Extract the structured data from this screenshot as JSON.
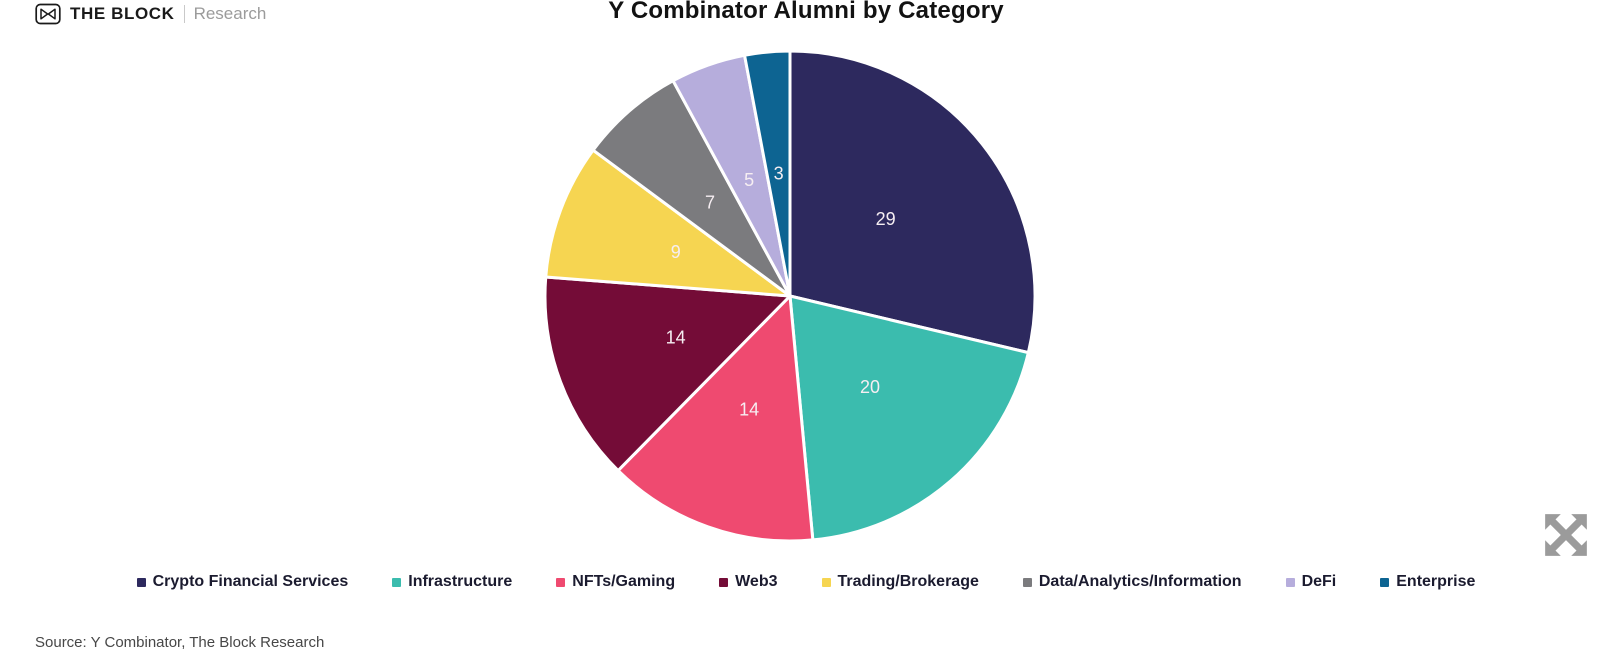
{
  "brand": {
    "name": "THE BLOCK",
    "sub": "Research",
    "logo_icon": "the-block-cube-logo-icon"
  },
  "title": "Y Combinator Alumni by Category",
  "source": "Source: Y Combinator, The Block Research",
  "icons": {
    "expand": "expand-arrows-icon"
  },
  "colors": {
    "title_text": "#121212",
    "legend_text": "#1b1b2f",
    "slice_label_text": "#f6eef2",
    "expand_icon": "#9b9b9b"
  },
  "chart_data": {
    "type": "pie",
    "title": "Y Combinator Alumni by Category",
    "categories": [
      "Crypto Financial Services",
      "Infrastructure",
      "NFTs/Gaming",
      "Web3",
      "Trading/Brokerage",
      "Data/Analytics/Information",
      "DeFi",
      "Enterprise"
    ],
    "values": [
      29,
      20,
      14,
      14,
      9,
      7,
      5,
      3
    ],
    "colors": [
      "#2d295e",
      "#3bbcae",
      "#ef4a70",
      "#740c37",
      "#f6d551",
      "#7b7b7e",
      "#b6addc",
      "#0d6492"
    ],
    "total": 101,
    "start_angle_deg": 0,
    "direction": "clockwise",
    "data_labels": "values-inside-slices",
    "legend_position": "bottom",
    "source": "Source: Y Combinator, The Block Research"
  }
}
